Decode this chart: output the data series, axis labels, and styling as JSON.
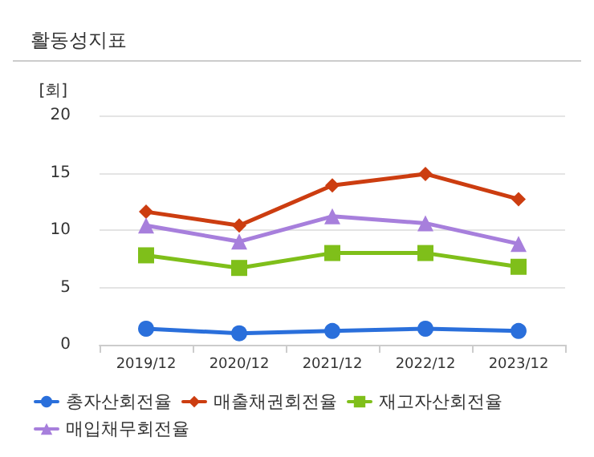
{
  "chart_data": {
    "type": "line",
    "title": "활동성지표",
    "ylabel": "[회]",
    "categories": [
      "2019/12",
      "2020/12",
      "2021/12",
      "2022/12",
      "2023/12"
    ],
    "series": [
      {
        "name": "총자산회전율",
        "color": "#2a6fdb",
        "marker": "circle",
        "values": [
          1.4,
          1.0,
          1.2,
          1.4,
          1.2
        ]
      },
      {
        "name": "매출채권회전율",
        "color": "#cc3d10",
        "marker": "diamond",
        "values": [
          11.6,
          10.4,
          13.9,
          14.9,
          12.7
        ]
      },
      {
        "name": "재고자산회전율",
        "color": "#7fbf1a",
        "marker": "square",
        "values": [
          7.8,
          6.7,
          8.0,
          8.0,
          6.8
        ]
      },
      {
        "name": "매입채무회전율",
        "color": "#a77fdc",
        "marker": "triangle",
        "values": [
          10.4,
          9.0,
          11.2,
          10.6,
          8.8
        ]
      }
    ],
    "ylim": [
      0,
      20
    ],
    "yticks": [
      0,
      5,
      10,
      15,
      20
    ],
    "grid": "y",
    "legend": "bottom",
    "line_style": "solid"
  }
}
